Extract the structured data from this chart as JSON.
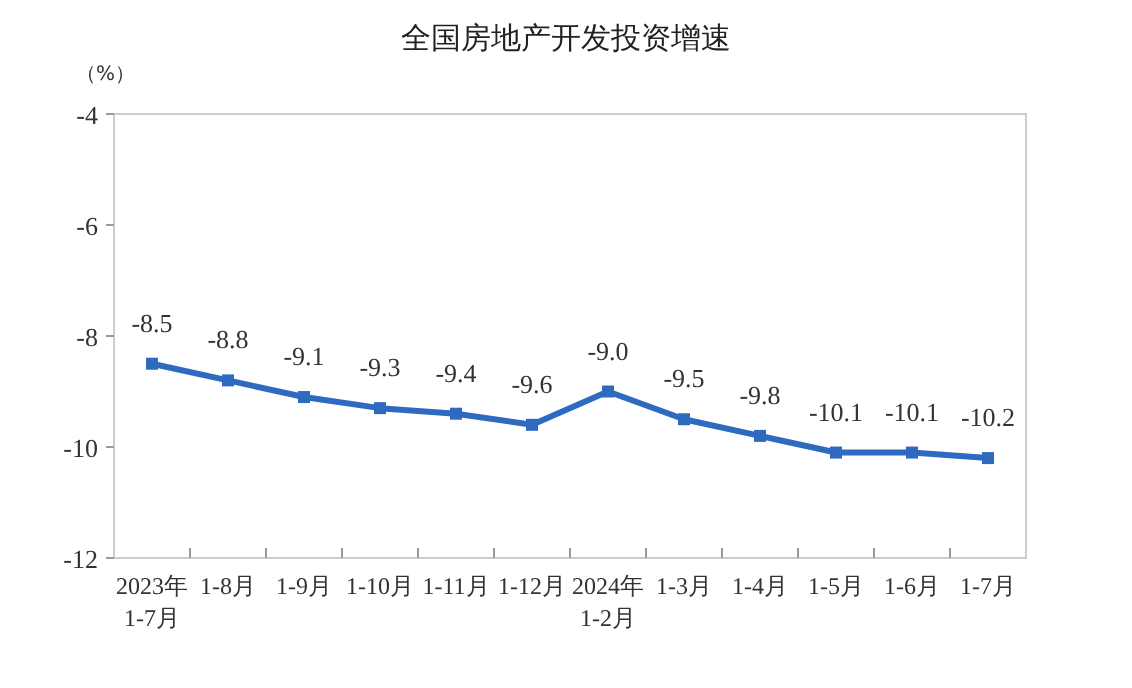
{
  "chart_data": {
    "type": "line",
    "title": "全国房地产开发投资增速",
    "ylabel": "（%）",
    "categories": [
      "2023年\n1-7月",
      "1-8月",
      "1-9月",
      "1-10月",
      "1-11月",
      "1-12月",
      "2024年\n1-2月",
      "1-3月",
      "1-4月",
      "1-5月",
      "1-6月",
      "1-7月"
    ],
    "series": [
      {
        "color": "#2e6bc0",
        "values": [
          -8.5,
          -8.8,
          -9.1,
          -9.3,
          -9.4,
          -9.6,
          -9.0,
          -9.5,
          -9.8,
          -10.1,
          -10.1,
          -10.2
        ],
        "value_labels": [
          "-8.5",
          "-8.8",
          "-9.1",
          "-9.3",
          "-9.4",
          "-9.6",
          "-9.0",
          "-9.5",
          "-9.8",
          "-10.1",
          "-10.1",
          "-10.2"
        ]
      }
    ],
    "ylim": [
      -12,
      -4
    ],
    "yticks": [
      -12,
      -10,
      -8,
      -6,
      -4
    ],
    "marker": "square",
    "line_style": "solid",
    "grid": false
  }
}
